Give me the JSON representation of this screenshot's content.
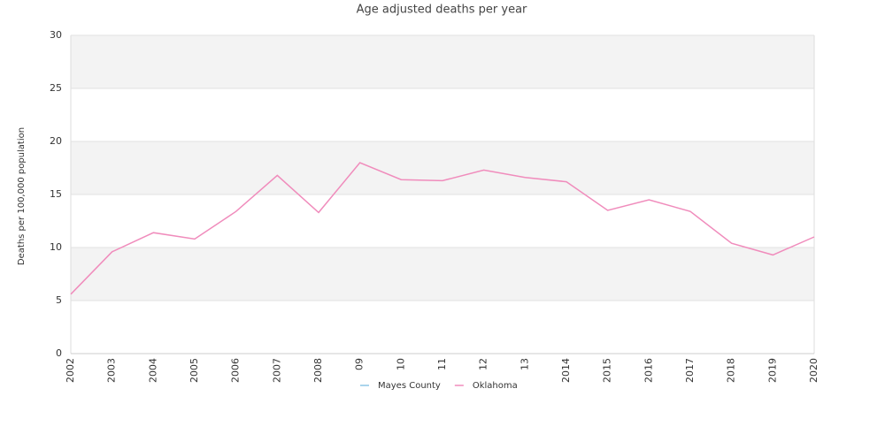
{
  "chart_data": {
    "type": "line",
    "title": "Age adjusted deaths per year",
    "y_label": "Deaths per 100,000 population",
    "categories": [
      "2002",
      "2003",
      "2004",
      "2005",
      "2006",
      "2007",
      "2008",
      "09",
      "10",
      "11",
      "12",
      "13",
      "2014",
      "2015",
      "2016",
      "2017",
      "2018",
      "2019",
      "2020"
    ],
    "series": [
      {
        "name": "Mayes County",
        "color": "#8ec6e6",
        "values": [
          null,
          null,
          null,
          null,
          null,
          null,
          null,
          null,
          null,
          null,
          null,
          null,
          null,
          null,
          null,
          null,
          null,
          null,
          null
        ]
      },
      {
        "name": "Oklahoma",
        "color": "#f08cbc",
        "values": [
          5.6,
          9.6,
          11.4,
          10.8,
          13.4,
          16.8,
          13.3,
          18.0,
          16.4,
          16.3,
          17.3,
          16.6,
          16.2,
          13.5,
          14.5,
          13.4,
          10.4,
          9.3,
          11.0
        ]
      }
    ],
    "ylim": [
      0,
      30
    ],
    "yticks": [
      0,
      5,
      10,
      15,
      20,
      25,
      30
    ],
    "grid": true,
    "legend": "bottom"
  }
}
